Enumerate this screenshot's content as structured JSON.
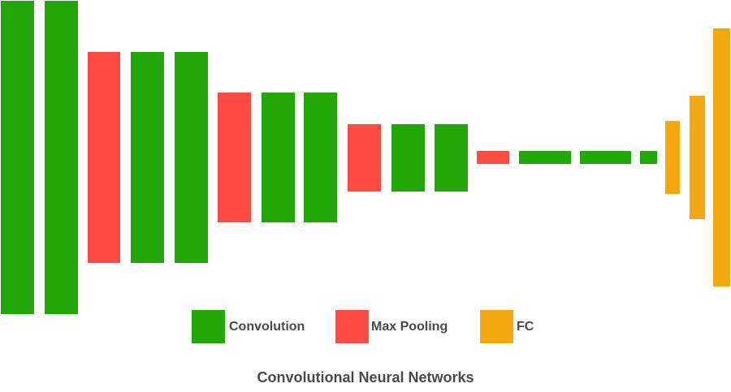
{
  "colors": {
    "convolution": "#22a806",
    "max_pooling": "#ff4b41",
    "fc": "#f5a80e"
  },
  "layers": [
    {
      "type": "convolution"
    },
    {
      "type": "convolution"
    },
    {
      "type": "max_pooling"
    },
    {
      "type": "convolution"
    },
    {
      "type": "convolution"
    },
    {
      "type": "max_pooling"
    },
    {
      "type": "convolution"
    },
    {
      "type": "convolution"
    },
    {
      "type": "max_pooling"
    },
    {
      "type": "convolution"
    },
    {
      "type": "convolution"
    },
    {
      "type": "max_pooling"
    },
    {
      "type": "convolution"
    },
    {
      "type": "convolution"
    },
    {
      "type": "convolution"
    },
    {
      "type": "fc"
    },
    {
      "type": "fc"
    },
    {
      "type": "fc"
    }
  ],
  "legend": {
    "convolution_label": "Convolution",
    "max_pooling_label": "Max Pooling",
    "fc_label": "FC"
  },
  "title": "Convolutional Neural Networks"
}
